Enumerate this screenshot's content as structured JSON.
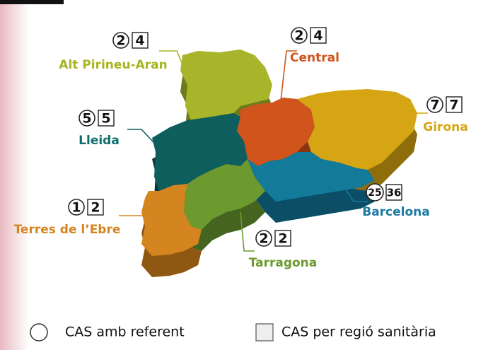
{
  "regions": [
    {
      "name": "Alt Pirineu-Aran",
      "circle": 2,
      "box": 4
    },
    {
      "name": "Central",
      "circle": 2,
      "box": 4
    },
    {
      "name": "Girona",
      "circle": 7,
      "box": 7
    },
    {
      "name": "Lleida",
      "circle": 5,
      "box": 5
    },
    {
      "name": "Barcelona",
      "circle": 25,
      "box": 36
    },
    {
      "name": "Tarragona",
      "circle": 2,
      "box": 2
    },
    {
      "name": "Terres de l’Ebre",
      "circle": 1,
      "box": 2
    }
  ],
  "legend": {
    "circle": "CAS amb referent",
    "box": "CAS per regió sanitària"
  }
}
